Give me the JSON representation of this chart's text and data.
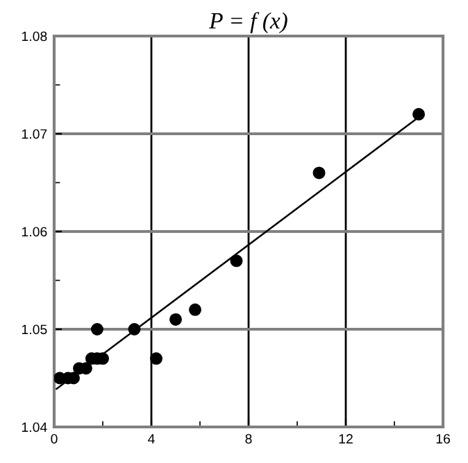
{
  "chart_data": {
    "type": "scatter",
    "title": "P = f (x)",
    "series": [
      {
        "color": "#000000",
        "marker": "circle",
        "x": [
          0.23,
          0.57,
          0.8,
          1.03,
          1.31,
          1.54,
          1.77,
          2.0,
          1.77,
          3.3,
          4.2,
          5.0,
          5.8,
          7.5,
          10.9,
          15.0
        ],
        "values": [
          1.045,
          1.045,
          1.045,
          1.046,
          1.046,
          1.047,
          1.047,
          1.047,
          1.05,
          1.05,
          1.047,
          1.051,
          1.052,
          1.057,
          1.066,
          1.072
        ]
      },
      {
        "type": "line",
        "color": "#000000",
        "marker": "none",
        "x": [
          0.1,
          15.0
        ],
        "values": [
          1.0439,
          1.0717
        ]
      }
    ],
    "xlim": [
      0,
      16
    ],
    "xticks": [
      0,
      4,
      8,
      12,
      16
    ],
    "ylim": [
      1.04,
      1.08
    ],
    "yticks": [
      1.04,
      1.05,
      1.06,
      1.07,
      1.08
    ],
    "grid": true
  }
}
